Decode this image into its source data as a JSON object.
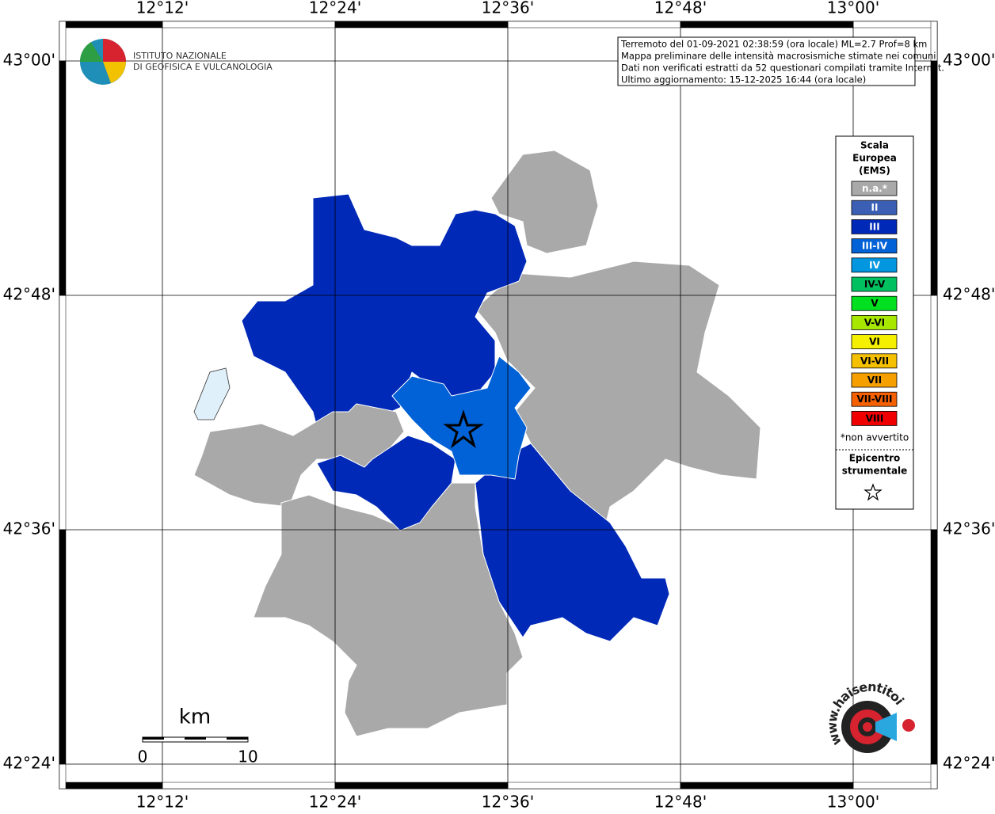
{
  "axes": {
    "x_labels": [
      "12°12'",
      "12°24'",
      "12°36'",
      "12°48'",
      "13°00'"
    ],
    "y_labels": [
      "43°00'",
      "42°48'",
      "42°36'",
      "42°24'"
    ]
  },
  "info_box": {
    "lines": [
      "Terremoto del 01-09-2021 02:38:59 (ora locale) ML=2.7 Prof=8 km",
      "Mappa preliminare delle intensità macrosismiche stimate nei comuni",
      "Dati non verificati estratti da 52 questionari compilati tramite Internet.",
      "Ultimo aggiornamento: 15-12-2025 16:44 (ora locale)"
    ]
  },
  "logo": {
    "lines": [
      "ISTITUTO NAZIONALE",
      "DI GEOFISICA E VULCANOLOGIA"
    ]
  },
  "legend": {
    "title": [
      "Scala",
      "Europea",
      "(EMS)"
    ],
    "items": [
      {
        "label": "n.a.*",
        "color": "#a9a9a9"
      },
      {
        "label": "II",
        "color": "#3a5fb5"
      },
      {
        "label": "III",
        "color": "#0029b8"
      },
      {
        "label": "III-IV",
        "color": "#0062d6"
      },
      {
        "label": "IV",
        "color": "#0096e0"
      },
      {
        "label": "IV-V",
        "color": "#00c060"
      },
      {
        "label": "V",
        "color": "#00e020"
      },
      {
        "label": "V-VI",
        "color": "#a8e800"
      },
      {
        "label": "VI",
        "color": "#f5f000"
      },
      {
        "label": "VI-VII",
        "color": "#f5c000"
      },
      {
        "label": "VII",
        "color": "#f5a000"
      },
      {
        "label": "VII-VIII",
        "color": "#f56000"
      },
      {
        "label": "VIII",
        "color": "#f00000"
      }
    ],
    "note": "*non avvertito",
    "epicenter": [
      "Epicentro",
      "strumentale"
    ]
  },
  "scale_bar": {
    "unit": "km",
    "labels": [
      "0",
      "10"
    ]
  },
  "site_logo": {
    "text": "www.haisentitoilterremoto.it"
  }
}
